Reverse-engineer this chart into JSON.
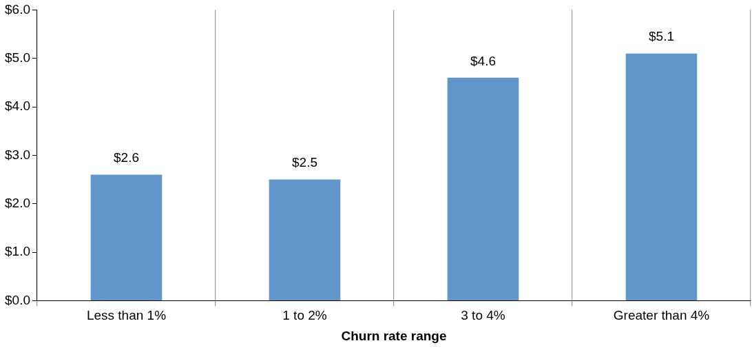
{
  "chart_data": {
    "type": "bar",
    "xlabel": "Churn rate range",
    "categories": [
      "Less than 1%",
      "1 to 2%",
      "3 to 4%",
      "Greater than 4%"
    ],
    "values": [
      2.6,
      2.5,
      4.6,
      5.1
    ],
    "color": "#6096c9",
    "value_labels": [
      "$2.6",
      "$2.5",
      "$4.6",
      "$5.1"
    ],
    "ylim": [
      0,
      6
    ],
    "yticks": [
      {
        "value": 0,
        "label": "$0.0"
      },
      {
        "value": 1,
        "label": "$1.0"
      },
      {
        "value": 2,
        "label": "$2.0"
      },
      {
        "value": 3,
        "label": "$3.0"
      },
      {
        "value": 4,
        "label": "$4.0"
      },
      {
        "value": 5,
        "label": "$5.0"
      },
      {
        "value": 6,
        "label": "$6.0"
      }
    ],
    "grid": "x",
    "legend": false
  }
}
